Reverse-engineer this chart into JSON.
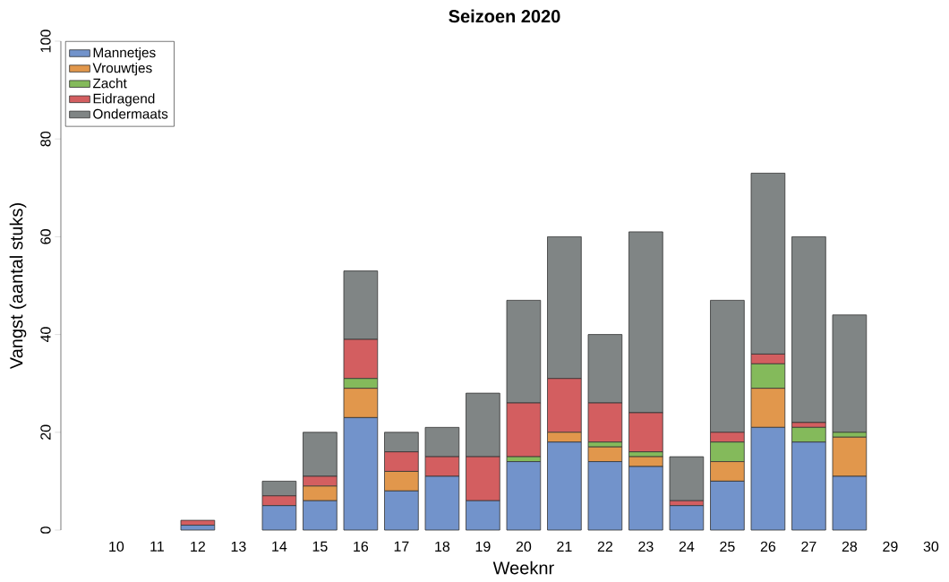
{
  "chart_data": {
    "type": "bar",
    "stacked": true,
    "title": "Seizoen 2020",
    "xlabel": "Weeknr",
    "ylabel": "Vangst (aantal stuks)",
    "categories": [
      "10",
      "11",
      "12",
      "13",
      "14",
      "15",
      "16",
      "17",
      "18",
      "19",
      "20",
      "21",
      "22",
      "23",
      "24",
      "25",
      "26",
      "27",
      "28",
      "29",
      "30"
    ],
    "series": [
      {
        "name": "Mannetjes",
        "color": "#7293cb",
        "values": [
          0,
          0,
          1,
          0,
          5,
          6,
          23,
          8,
          11,
          6,
          14,
          18,
          14,
          13,
          5,
          10,
          21,
          18,
          11,
          0,
          0
        ]
      },
      {
        "name": "Vrouwtjes",
        "color": "#e1974c",
        "values": [
          0,
          0,
          0,
          0,
          0,
          3,
          6,
          4,
          0,
          0,
          0,
          2,
          3,
          2,
          0,
          4,
          8,
          0,
          8,
          0,
          0
        ]
      },
      {
        "name": "Zacht",
        "color": "#84ba5b",
        "values": [
          0,
          0,
          0,
          0,
          0,
          0,
          2,
          0,
          0,
          0,
          1,
          0,
          1,
          1,
          0,
          4,
          5,
          3,
          1,
          0,
          0
        ]
      },
      {
        "name": "Eidragend",
        "color": "#d35e60",
        "values": [
          0,
          0,
          1,
          0,
          2,
          2,
          8,
          4,
          4,
          9,
          11,
          11,
          8,
          8,
          1,
          2,
          2,
          1,
          0,
          0,
          0
        ]
      },
      {
        "name": "Ondermaats",
        "color": "#808585",
        "values": [
          0,
          0,
          0,
          0,
          3,
          9,
          14,
          4,
          6,
          13,
          21,
          29,
          14,
          37,
          9,
          27,
          37,
          38,
          24,
          0,
          0
        ]
      }
    ],
    "ylim": [
      0,
      100
    ],
    "yticks": [
      0,
      20,
      40,
      60,
      80,
      100
    ],
    "grid": false,
    "legend": "top left"
  }
}
